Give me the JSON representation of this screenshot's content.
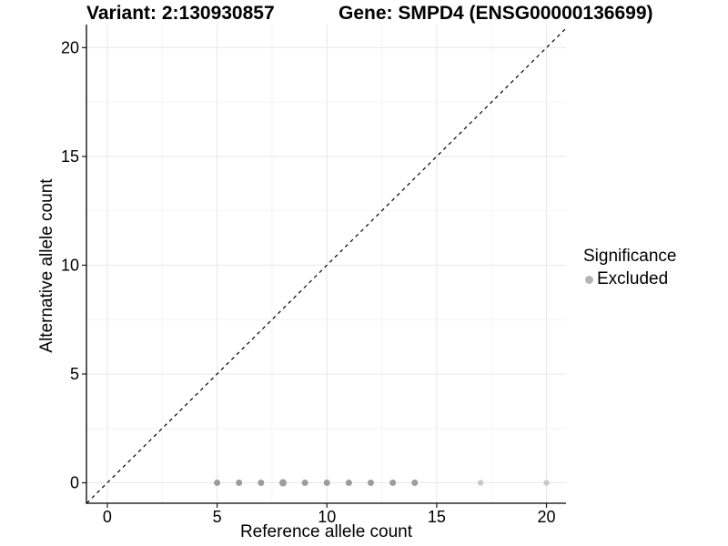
{
  "header": {
    "variant_title": "Variant: 2:130930857",
    "gene_title": "Gene: SMPD4 (ENSG00000136699)"
  },
  "chart_data": {
    "type": "scatter",
    "xlabel": "Reference allele count",
    "ylabel": "Alternative allele count",
    "xlim": [
      -0.95,
      20.89
    ],
    "ylim": [
      -0.94,
      21.06
    ],
    "x_ticks": [
      0,
      5,
      10,
      15,
      20
    ],
    "y_ticks": [
      0,
      5,
      10,
      15,
      20
    ],
    "x_minor_ticks": [
      2.5,
      7.5,
      12.5,
      17.5
    ],
    "y_minor_ticks": [
      2.5,
      7.5,
      12.5,
      17.5
    ],
    "grid": "major+minor",
    "legend_position": "right",
    "series": [
      {
        "name": "Excluded",
        "color": "#9c9c9c",
        "points": [
          {
            "x": 5,
            "y": 0
          },
          {
            "x": 6,
            "y": 0
          },
          {
            "x": 7,
            "y": 0
          },
          {
            "x": 8,
            "y": 0,
            "r": 4
          },
          {
            "x": 9,
            "y": 0
          },
          {
            "x": 10,
            "y": 0
          },
          {
            "x": 11,
            "y": 0
          },
          {
            "x": 12,
            "y": 0
          },
          {
            "x": 13,
            "y": 0
          },
          {
            "x": 14,
            "y": 0
          },
          {
            "x": 17,
            "y": 0,
            "color": "#c9c9c9",
            "r": 3.2
          },
          {
            "x": 20,
            "y": 0,
            "color": "#c9c9c9",
            "r": 3.2
          }
        ]
      }
    ],
    "identity_line": {
      "slope": 1,
      "intercept": 0,
      "style": "dashed",
      "color": "#000000"
    }
  },
  "legend": {
    "title": "Significance",
    "items": [
      {
        "label": "Excluded",
        "color": "#b5b5b5"
      }
    ]
  },
  "colors": {
    "axis_line": "#000000",
    "tick_mark": "#1a1a1a",
    "tick_label": "#000000",
    "grid_major": "#e8e8e8",
    "grid_minor": "#f4f4f4",
    "background": "#ffffff"
  }
}
